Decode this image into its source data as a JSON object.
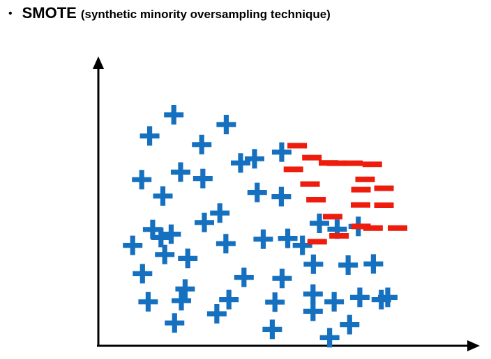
{
  "header": {
    "bullet": "•",
    "title": "SMOTE",
    "subtitle": "(synthetic minority oversampling technique)"
  },
  "colors": {
    "majority": "#1570c0",
    "minority": "#ee1c0c",
    "axis": "#000000"
  },
  "chart_data": {
    "type": "scatter",
    "title": "",
    "xlabel": "",
    "ylabel": "",
    "xlim": [
      0,
      100
    ],
    "ylim": [
      0,
      100
    ],
    "grid": false,
    "series": [
      {
        "marker": "plus",
        "color": "#1570c0",
        "points": [
          [
            20.0,
            83.0
          ],
          [
            13.6,
            75.4
          ],
          [
            33.9,
            79.5
          ],
          [
            27.4,
            72.3
          ],
          [
            41.4,
            67.2
          ],
          [
            42.1,
            55.1
          ],
          [
            48.6,
            69.6
          ],
          [
            37.7,
            65.7
          ],
          [
            11.5,
            59.7
          ],
          [
            21.8,
            62.4
          ],
          [
            27.7,
            60.1
          ],
          [
            17.1,
            53.8
          ],
          [
            32.2,
            47.7
          ],
          [
            28.1,
            44.3
          ],
          [
            14.4,
            41.8
          ],
          [
            19.3,
            40.1
          ],
          [
            48.5,
            53.6
          ],
          [
            50.2,
            38.6
          ],
          [
            58.6,
            44.0
          ],
          [
            68.9,
            42.9
          ],
          [
            9.1,
            36.1
          ],
          [
            17.6,
            32.8
          ],
          [
            23.7,
            31.4
          ],
          [
            33.8,
            36.7
          ],
          [
            43.7,
            38.3
          ],
          [
            63.3,
            41.9
          ],
          [
            11.7,
            25.9
          ],
          [
            23.0,
            20.4
          ],
          [
            34.6,
            16.6
          ],
          [
            48.7,
            24.2
          ],
          [
            56.9,
            18.6
          ],
          [
            66.2,
            29.0
          ],
          [
            13.2,
            15.8
          ],
          [
            22.0,
            16.2
          ],
          [
            38.6,
            24.6
          ],
          [
            46.1,
            5.9
          ],
          [
            57.0,
            29.3
          ],
          [
            72.9,
            29.4
          ],
          [
            62.5,
            15.8
          ],
          [
            76.7,
            17.4
          ],
          [
            20.2,
            8.2
          ],
          [
            31.4,
            11.5
          ],
          [
            46.8,
            15.7
          ],
          [
            69.3,
            17.4
          ],
          [
            56.9,
            12.4
          ],
          [
            66.6,
            7.6
          ],
          [
            54.1,
            36.1
          ],
          [
            75.0,
            16.6
          ],
          [
            16.6,
            38.9
          ],
          [
            61.3,
            2.9
          ]
        ]
      },
      {
        "marker": "dash",
        "color": "#ee1c0c",
        "points": [
          [
            52.7,
            71.9
          ],
          [
            56.6,
            67.6
          ],
          [
            51.7,
            63.4
          ],
          [
            61.0,
            65.7
          ],
          [
            63.2,
            65.6
          ],
          [
            67.5,
            65.6
          ],
          [
            72.6,
            65.2
          ],
          [
            70.7,
            59.8
          ],
          [
            56.1,
            58.1
          ],
          [
            75.7,
            56.6
          ],
          [
            69.6,
            56.1
          ],
          [
            57.7,
            52.5
          ],
          [
            69.5,
            50.6
          ],
          [
            75.7,
            50.5
          ],
          [
            62.1,
            46.4
          ],
          [
            69.6,
            42.9
          ],
          [
            72.8,
            42.3
          ],
          [
            79.3,
            42.3
          ],
          [
            63.8,
            39.5
          ],
          [
            58.0,
            37.4
          ]
        ]
      }
    ]
  }
}
